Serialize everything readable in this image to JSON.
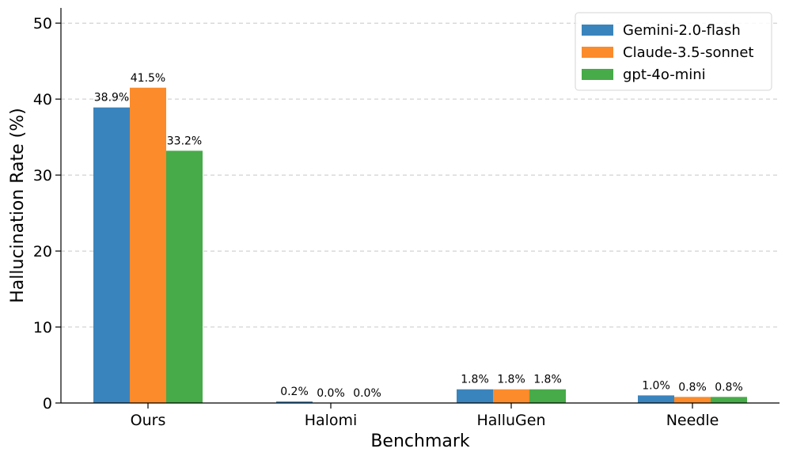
{
  "chart_data": {
    "type": "bar",
    "xlabel": "Benchmark",
    "ylabel": "Hallucination Rate (%)",
    "categories": [
      "Ours",
      "Halomi",
      "HalluGen",
      "Needle"
    ],
    "series": [
      {
        "name": "Gemini-2.0-flash",
        "color": "#3a84bd",
        "values": [
          38.9,
          0.2,
          1.8,
          1.0
        ],
        "labels": [
          "38.9%",
          "0.2%",
          "1.8%",
          "1.0%"
        ]
      },
      {
        "name": "Claude-3.5-sonnet",
        "color": "#fb8b2b",
        "values": [
          41.5,
          0.0,
          1.8,
          0.8
        ],
        "labels": [
          "41.5%",
          "0.0%",
          "1.8%",
          "0.8%"
        ]
      },
      {
        "name": "gpt-4o-mini",
        "color": "#46ab48",
        "values": [
          33.2,
          0.0,
          1.8,
          0.8
        ],
        "labels": [
          "33.2%",
          "0.0%",
          "1.8%",
          "0.8%"
        ]
      }
    ],
    "ylim": [
      0,
      52
    ],
    "yticks": [
      0,
      10,
      20,
      30,
      40,
      50
    ],
    "grid": "y-dashed",
    "legend": "top-right"
  }
}
